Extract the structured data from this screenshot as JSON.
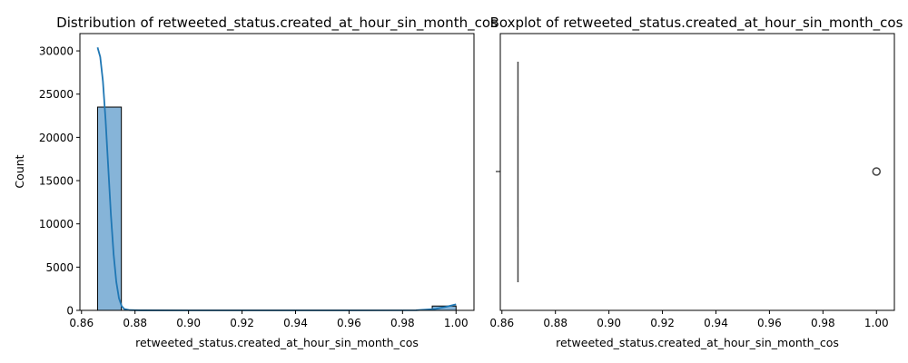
{
  "chart_data": [
    {
      "type": "histogram",
      "title": "Distribution of retweeted_status.created_at_hour_sin_month_cos",
      "xlabel": "retweeted_status.created_at_hour_sin_month_cos",
      "ylabel": "Count",
      "xlim": [
        0.8594,
        1.0067
      ],
      "ylim": [
        0,
        32000
      ],
      "xticks": [
        "0.86",
        "0.88",
        "0.90",
        "0.92",
        "0.94",
        "0.96",
        "0.98",
        "1.00"
      ],
      "yticks": [
        "0",
        "5000",
        "10000",
        "15000",
        "20000",
        "25000",
        "30000"
      ],
      "bins": [
        {
          "x0": 0.866,
          "x1": 0.8749,
          "count": 23500
        },
        {
          "x0": 0.9911,
          "x1": 1.0,
          "count": 500
        }
      ],
      "kde": [
        [
          0.866,
          30400
        ],
        [
          0.867,
          29300
        ],
        [
          0.868,
          26500
        ],
        [
          0.869,
          22000
        ],
        [
          0.87,
          16500
        ],
        [
          0.871,
          11000
        ],
        [
          0.872,
          6500
        ],
        [
          0.873,
          3300
        ],
        [
          0.874,
          1400
        ],
        [
          0.875,
          500
        ],
        [
          0.876,
          150
        ],
        [
          0.878,
          30
        ],
        [
          0.882,
          5
        ],
        [
          0.9,
          0
        ],
        [
          0.95,
          0
        ],
        [
          0.985,
          10
        ],
        [
          0.992,
          150
        ],
        [
          0.996,
          400
        ],
        [
          1.0,
          700
        ]
      ],
      "colors": {
        "bar": "#86b4d8",
        "line": "#1f77b4",
        "edge": "#000000"
      },
      "grid": false
    },
    {
      "type": "boxplot",
      "title": "Boxplot of retweeted_status.created_at_hour_sin_month_cos",
      "xlabel": "retweeted_status.created_at_hour_sin_month_cos",
      "xlim": [
        0.8594,
        1.0067
      ],
      "xticks": [
        "0.86",
        "0.88",
        "0.90",
        "0.92",
        "0.94",
        "0.96",
        "0.98",
        "1.00"
      ],
      "whisker_low": 0.866,
      "q1": 0.866,
      "median": 0.866,
      "q3": 0.866,
      "whisker_high": 0.866,
      "outliers": [
        1.0
      ],
      "colors": {
        "box": "#444444",
        "outlier": "#444444"
      },
      "grid": false
    }
  ]
}
